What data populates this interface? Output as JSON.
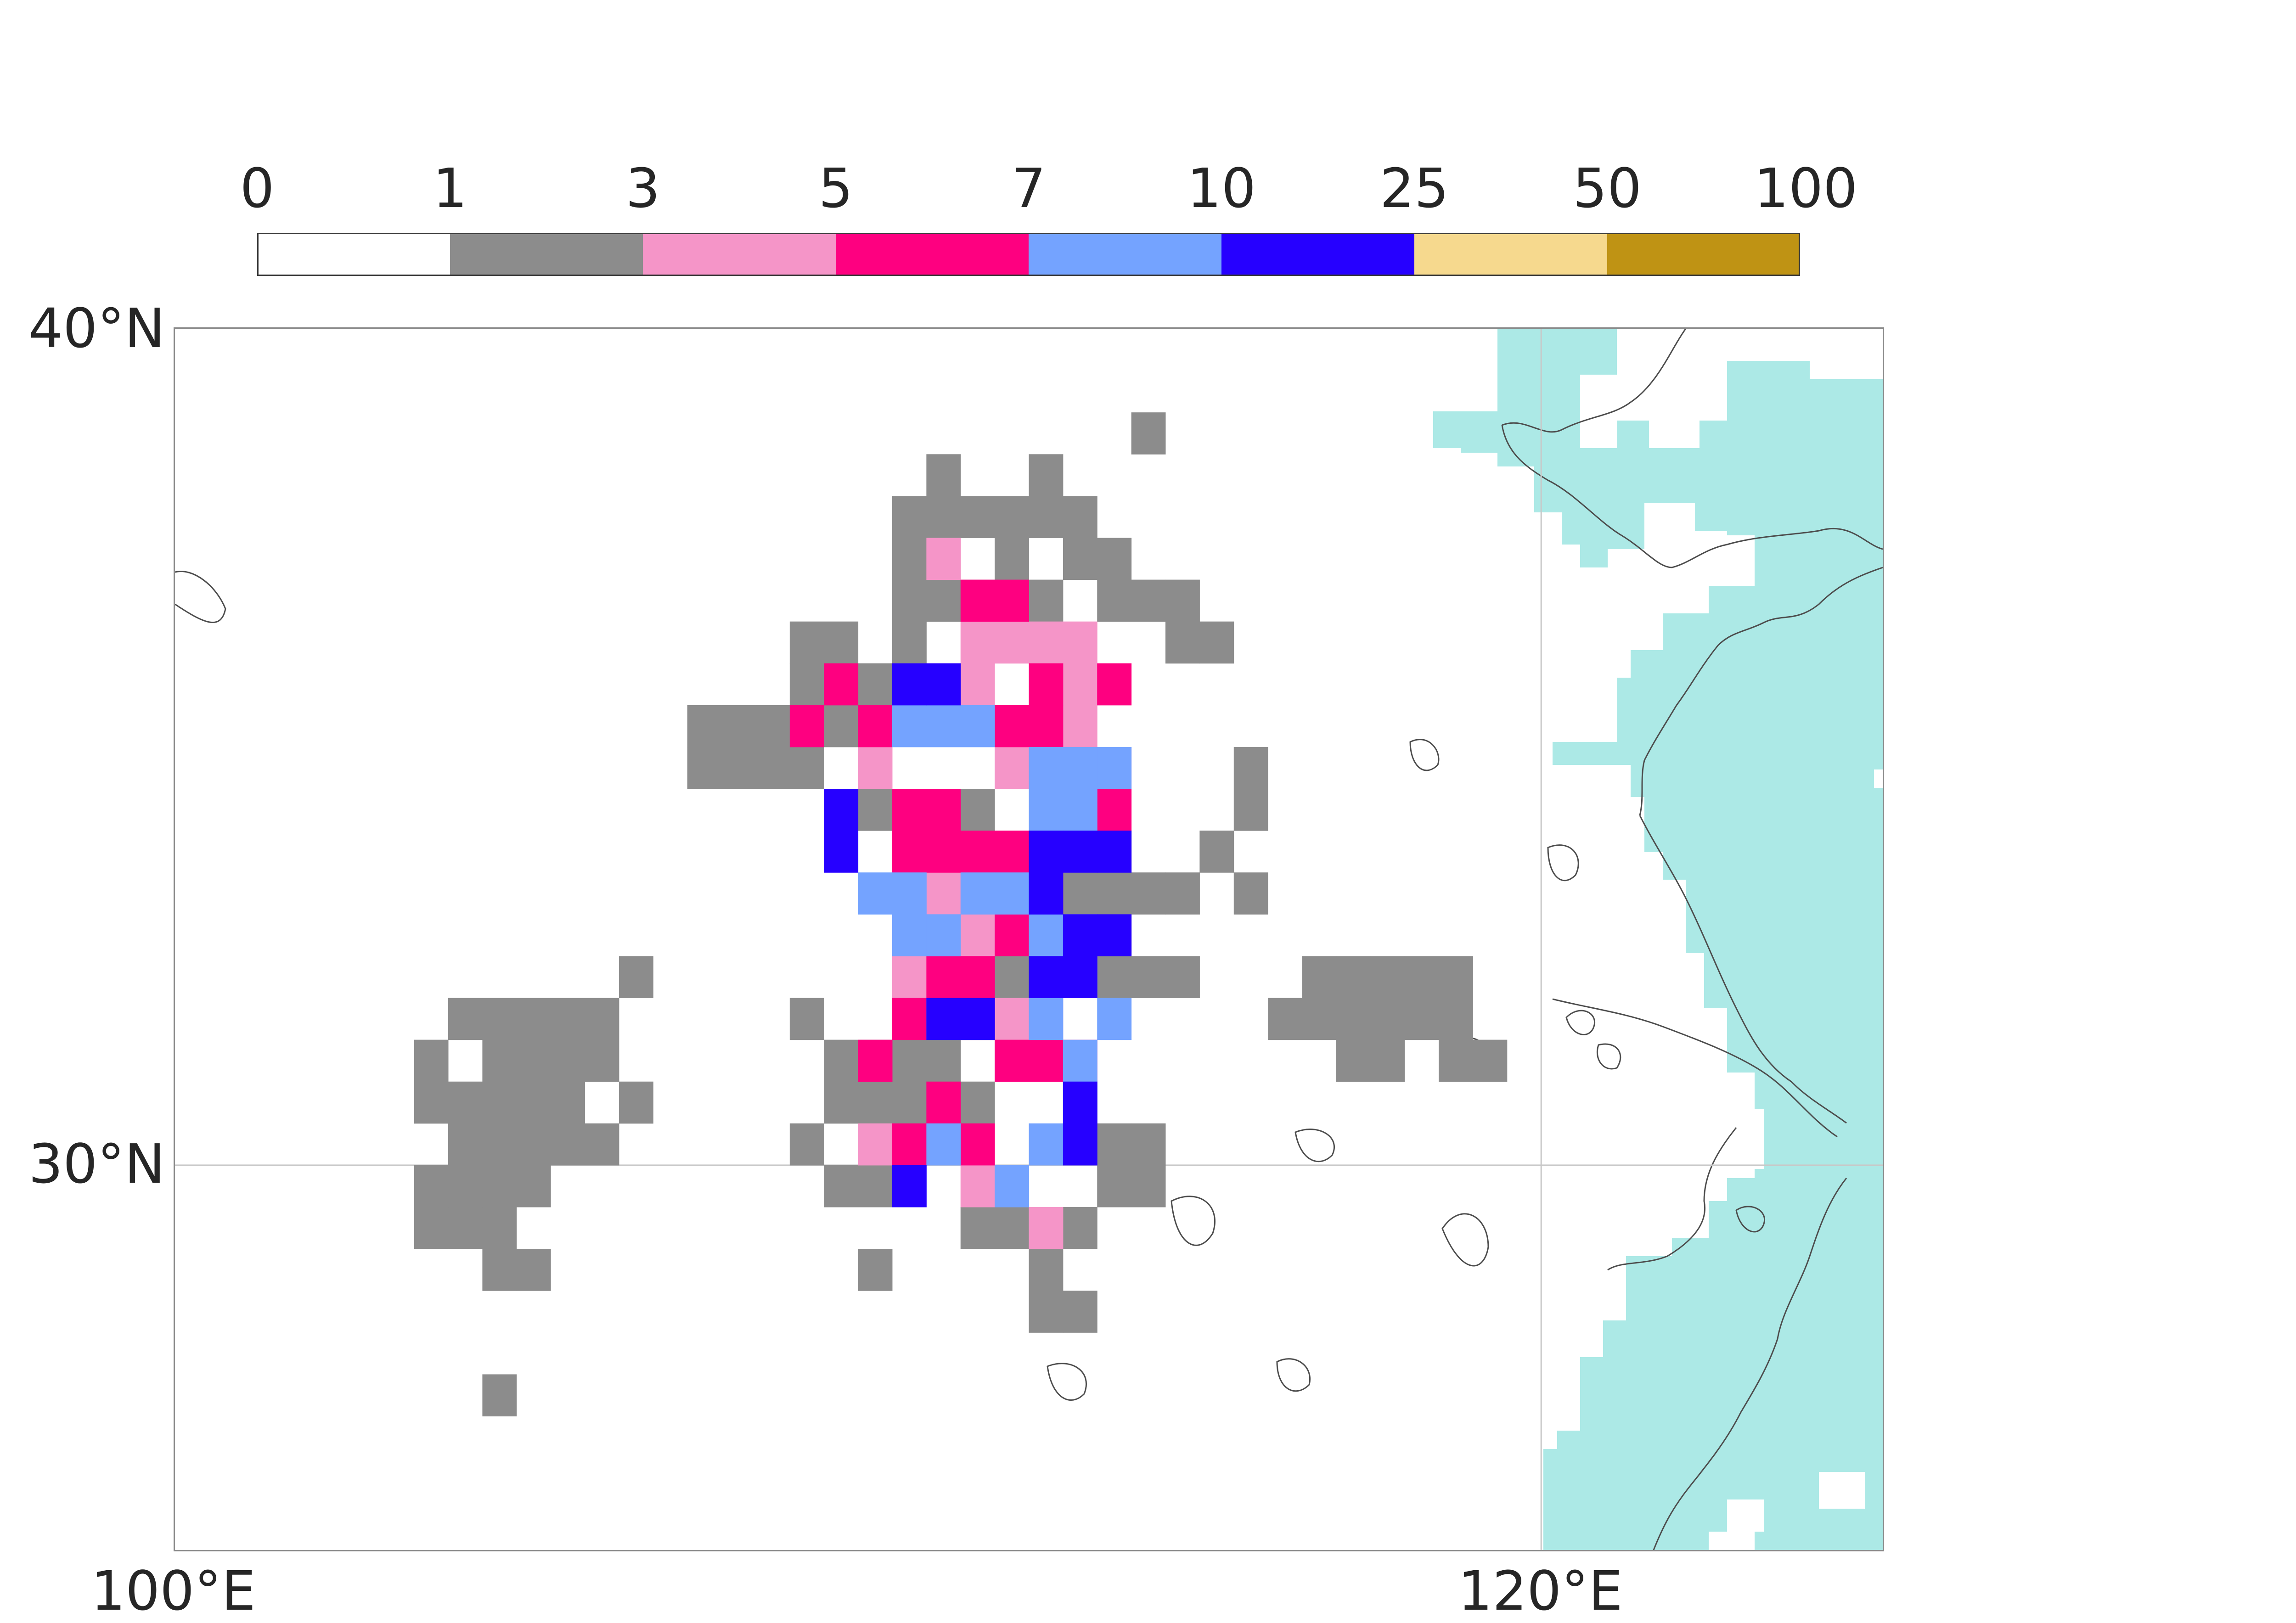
{
  "colorbar": {
    "boundaries": [
      "0",
      "1",
      "3",
      "5",
      "7",
      "10",
      "25",
      "50",
      "100"
    ],
    "colors": [
      "#ffffff",
      "#8c8c8c",
      "#f595c8",
      "#fe0080",
      "#74a3ff",
      "#2600ff",
      "#f6d98e",
      "#bf9314"
    ]
  },
  "axes": {
    "x_ticks": [
      "100°E",
      "120°E"
    ],
    "y_ticks": [
      "40°N",
      "30°N"
    ],
    "lon_range": [
      100,
      125
    ],
    "lat_range": [
      25.4,
      40
    ]
  },
  "colors": {
    "ocean_mask": "#ace9e6",
    "coastline": "#4d4d4d",
    "gridline": "#c8c8c8"
  },
  "grid_cells": {
    "units": "lon/lat cell corners, 0.5 degree cells (lon >= 118 cells are 0.75 x 0.5)",
    "gray": [
      [
        104.0,
        31.5
      ],
      [
        104.5,
        31.5
      ],
      [
        104.5,
        31.0
      ],
      [
        105.0,
        31.5
      ],
      [
        105.0,
        31.0
      ],
      [
        105.0,
        30.5
      ],
      [
        104.5,
        30.5
      ],
      [
        104.0,
        30.5
      ],
      [
        104.0,
        30.0
      ],
      [
        104.5,
        30.0
      ],
      [
        105.0,
        30.0
      ],
      [
        105.5,
        30.5
      ],
      [
        105.5,
        30.0
      ],
      [
        105.5,
        31.0
      ],
      [
        105.5,
        31.5
      ],
      [
        106.0,
        31.5
      ],
      [
        106.0,
        31.0
      ],
      [
        106.5,
        30.5
      ],
      [
        106.0,
        30.0
      ],
      [
        104.0,
        29.5
      ],
      [
        104.5,
        29.5
      ],
      [
        105.0,
        29.5
      ],
      [
        103.5,
        29.5
      ],
      [
        103.5,
        30.5
      ],
      [
        103.5,
        29.0
      ],
      [
        104.0,
        29.0
      ],
      [
        104.5,
        29.0
      ],
      [
        104.5,
        28.5
      ],
      [
        105.0,
        28.5
      ],
      [
        103.5,
        31.0
      ],
      [
        106.5,
        32.0
      ],
      [
        104.5,
        27.0
      ],
      [
        110.5,
        37.5
      ],
      [
        111.0,
        37.5
      ],
      [
        111.0,
        38.0
      ],
      [
        111.5,
        37.5
      ],
      [
        112.0,
        37.5
      ],
      [
        112.5,
        37.5
      ],
      [
        112.5,
        38.0
      ],
      [
        113.0,
        37.5
      ],
      [
        113.0,
        37.0
      ],
      [
        112.0,
        37.0
      ],
      [
        111.0,
        37.0
      ],
      [
        110.5,
        37.0
      ],
      [
        110.5,
        36.5
      ],
      [
        110.5,
        36.0
      ],
      [
        113.5,
        37.0
      ],
      [
        113.5,
        36.5
      ],
      [
        114.0,
        38.5
      ],
      [
        109.5,
        35.5
      ],
      [
        109.0,
        35.5
      ],
      [
        109.5,
        35.0
      ],
      [
        110.0,
        35.5
      ],
      [
        108.5,
        35.0
      ],
      [
        108.0,
        35.0
      ],
      [
        108.0,
        34.5
      ],
      [
        108.5,
        34.5
      ],
      [
        109.0,
        34.5
      ],
      [
        107.5,
        35.0
      ],
      [
        107.5,
        34.5
      ],
      [
        110.0,
        34.0
      ],
      [
        110.5,
        34.0
      ],
      [
        111.0,
        34.0
      ],
      [
        111.5,
        34.0
      ],
      [
        111.0,
        33.5
      ],
      [
        111.5,
        33.5
      ],
      [
        111.0,
        33.0
      ],
      [
        113.0,
        33.0
      ],
      [
        113.5,
        33.0
      ],
      [
        113.5,
        32.5
      ],
      [
        113.0,
        32.5
      ],
      [
        113.5,
        32.0
      ],
      [
        114.0,
        32.0
      ],
      [
        114.5,
        32.0
      ],
      [
        112.5,
        32.5
      ],
      [
        112.0,
        32.5
      ],
      [
        112.0,
        32.0
      ],
      [
        112.5,
        32.0
      ],
      [
        111.5,
        32.0
      ],
      [
        110.5,
        31.5
      ],
      [
        111.0,
        31.5
      ],
      [
        111.5,
        31.5
      ],
      [
        110.0,
        31.0
      ],
      [
        110.5,
        31.0
      ],
      [
        111.0,
        31.0
      ],
      [
        110.0,
        30.5
      ],
      [
        110.5,
        30.5
      ],
      [
        111.0,
        30.5
      ],
      [
        111.5,
        30.5
      ],
      [
        109.5,
        30.5
      ],
      [
        109.0,
        30.0
      ],
      [
        109.5,
        29.5
      ],
      [
        110.0,
        29.5
      ],
      [
        111.5,
        29.0
      ],
      [
        112.5,
        28.0
      ],
      [
        113.0,
        28.0
      ],
      [
        109.0,
        31.5
      ],
      [
        109.5,
        31.0
      ],
      [
        110.0,
        28.5
      ],
      [
        113.5,
        30.0
      ],
      [
        113.0,
        30.5
      ],
      [
        115.5,
        34.5
      ],
      [
        115.5,
        34.0
      ],
      [
        115.0,
        33.5
      ],
      [
        115.5,
        33.0
      ],
      [
        114.0,
        30.0
      ],
      [
        113.5,
        29.5
      ],
      [
        114.0,
        29.5
      ],
      [
        113.0,
        29.0
      ],
      [
        112.0,
        29.0
      ],
      [
        112.5,
        28.5
      ],
      [
        114.5,
        36.0
      ],
      [
        115.0,
        36.0
      ],
      [
        114.0,
        36.5
      ],
      [
        114.5,
        36.5
      ],
      [
        109.0,
        36.0
      ],
      [
        109.5,
        36.0
      ],
      [
        113.5,
        33.5
      ],
      [
        114.5,
        33.0
      ],
      [
        114.0,
        33.0
      ],
      [
        116.5,
        32.0
      ],
      [
        116.5,
        31.5
      ],
      [
        117.0,
        32.0
      ],
      [
        117.0,
        31.5
      ],
      [
        117.5,
        32.0
      ],
      [
        117.5,
        31.5
      ],
      [
        118.0,
        32.0
      ],
      [
        118.0,
        31.5
      ],
      [
        118.5,
        31.5
      ],
      [
        118.5,
        32.0
      ],
      [
        118.5,
        31.0
      ],
      [
        119.0,
        31.0
      ],
      [
        117.0,
        31.0
      ],
      [
        116.0,
        31.5
      ],
      [
        117.5,
        31.0
      ],
      [
        111.0,
        36.5
      ],
      [
        111.5,
        36.5
      ],
      [
        112.0,
        36.5
      ],
      [
        112.5,
        36.5
      ]
    ],
    "pink": [
      [
        111.0,
        37.0
      ],
      [
        111.5,
        36.0
      ],
      [
        112.0,
        36.0
      ],
      [
        112.5,
        36.0
      ],
      [
        113.0,
        36.0
      ],
      [
        113.0,
        35.5
      ],
      [
        110.0,
        34.5
      ],
      [
        113.5,
        34.5
      ],
      [
        113.0,
        34.0
      ],
      [
        111.0,
        33.0
      ],
      [
        111.5,
        33.0
      ],
      [
        112.0,
        33.0
      ],
      [
        112.5,
        33.0
      ],
      [
        110.5,
        32.5
      ],
      [
        111.5,
        32.5
      ],
      [
        112.0,
        32.5
      ],
      [
        112.5,
        29.0
      ],
      [
        112.0,
        29.5
      ],
      [
        110.0,
        30.0
      ],
      [
        111.5,
        29.5
      ],
      [
        112.0,
        35.0
      ],
      [
        112.5,
        35.0
      ],
      [
        113.0,
        35.0
      ],
      [
        111.0,
        35.5
      ],
      [
        111.5,
        35.5
      ],
      [
        112.0,
        34.5
      ],
      [
        112.0,
        31.5
      ],
      [
        112.5,
        31.5
      ],
      [
        110.5,
        32.0
      ],
      [
        111.0,
        32.5
      ]
    ],
    "magenta": [
      [
        111.5,
        36.5
      ],
      [
        112.0,
        36.5
      ],
      [
        112.5,
        35.5
      ],
      [
        113.5,
        35.5
      ],
      [
        109.5,
        35.5
      ],
      [
        109.0,
        35.0
      ],
      [
        110.0,
        35.0
      ],
      [
        110.5,
        34.0
      ],
      [
        111.0,
        34.0
      ],
      [
        113.0,
        34.5
      ],
      [
        113.5,
        34.0
      ],
      [
        111.5,
        33.5
      ],
      [
        112.0,
        33.5
      ],
      [
        112.5,
        33.0
      ],
      [
        110.5,
        33.5
      ],
      [
        111.0,
        33.5
      ],
      [
        112.0,
        32.5
      ],
      [
        112.5,
        31.0
      ],
      [
        113.0,
        31.0
      ],
      [
        110.5,
        31.5
      ],
      [
        111.5,
        31.5
      ],
      [
        112.0,
        31.0
      ],
      [
        110.0,
        31.0
      ],
      [
        110.5,
        30.0
      ],
      [
        111.0,
        30.5
      ],
      [
        111.5,
        30.0
      ],
      [
        112.5,
        35.0
      ],
      [
        112.0,
        35.0
      ],
      [
        111.5,
        32.0
      ],
      [
        111.0,
        32.0
      ]
    ],
    "light_blue": [
      [
        110.5,
        35.0
      ],
      [
        111.0,
        35.0
      ],
      [
        111.5,
        35.0
      ],
      [
        112.5,
        34.5
      ],
      [
        113.0,
        34.5
      ],
      [
        113.5,
        34.5
      ],
      [
        112.5,
        34.0
      ],
      [
        113.0,
        34.0
      ],
      [
        110.0,
        33.0
      ],
      [
        110.5,
        33.0
      ],
      [
        111.0,
        32.5
      ],
      [
        112.5,
        32.5
      ],
      [
        113.0,
        32.5
      ],
      [
        110.5,
        32.5
      ],
      [
        111.5,
        33.0
      ],
      [
        112.0,
        33.0
      ],
      [
        111.0,
        31.5
      ],
      [
        113.5,
        31.5
      ],
      [
        113.0,
        31.0
      ],
      [
        112.0,
        29.5
      ],
      [
        112.5,
        30.0
      ],
      [
        111.0,
        30.0
      ],
      [
        112.5,
        32.0
      ],
      [
        113.0,
        32.0
      ],
      [
        112.5,
        31.5
      ]
    ],
    "blue": [
      [
        110.5,
        35.5
      ],
      [
        111.0,
        35.5
      ],
      [
        109.5,
        34.0
      ],
      [
        109.5,
        33.5
      ],
      [
        113.0,
        33.5
      ],
      [
        113.5,
        33.5
      ],
      [
        112.5,
        33.5
      ],
      [
        112.5,
        33.0
      ],
      [
        113.0,
        32.5
      ],
      [
        113.5,
        32.5
      ],
      [
        111.0,
        31.5
      ],
      [
        111.5,
        31.5
      ],
      [
        113.0,
        30.5
      ],
      [
        113.0,
        30.0
      ],
      [
        110.5,
        29.5
      ],
      [
        112.5,
        32.0
      ],
      [
        113.0,
        32.0
      ]
    ]
  }
}
